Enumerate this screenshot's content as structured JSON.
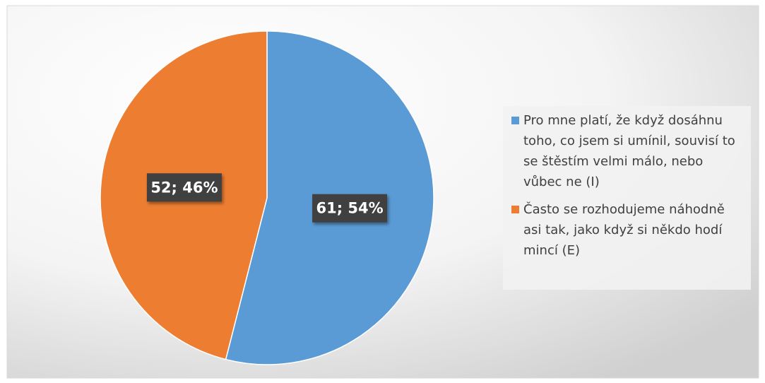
{
  "chart_data": {
    "type": "pie",
    "categories": [
      "Pro mne platí, že když dosáhnu toho, co jsem si umínil, souvisí to se štěstím velmi málo, nebo vůbec ne (I)",
      "Často se rozhodujeme náhodně asi tak, jako když si někdo hodí mincí (E)"
    ],
    "values": [
      61,
      52
    ],
    "value_labels": [
      "61; 54%",
      "52; 46%"
    ],
    "colors": [
      "#5b9bd5",
      "#ed7d31"
    ],
    "legend": "right"
  }
}
